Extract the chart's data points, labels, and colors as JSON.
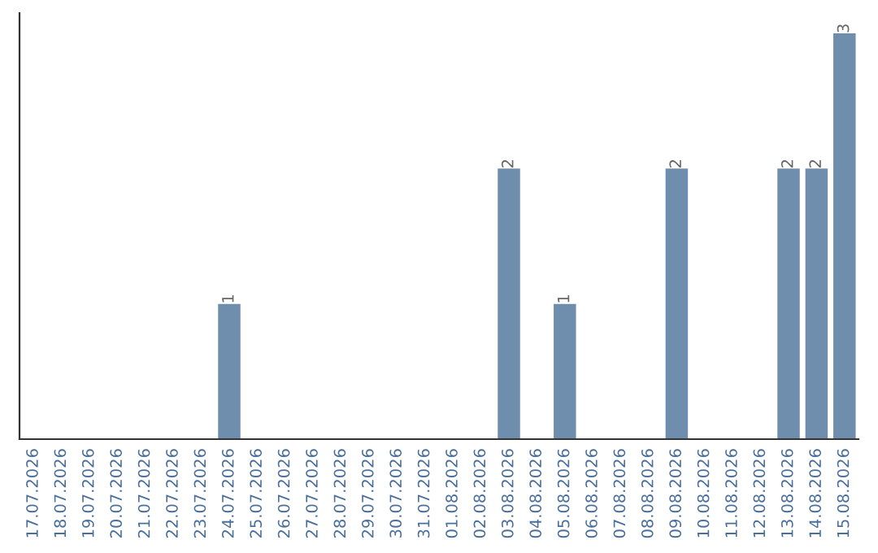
{
  "chart_data": {
    "type": "bar",
    "categories": [
      "17.07.2026",
      "18.07.2026",
      "19.07.2026",
      "20.07.2026",
      "21.07.2026",
      "22.07.2026",
      "23.07.2026",
      "24.07.2026",
      "25.07.2026",
      "26.07.2026",
      "27.07.2026",
      "28.07.2026",
      "29.07.2026",
      "30.07.2026",
      "31.07.2026",
      "01.08.2026",
      "02.08.2026",
      "03.08.2026",
      "04.08.2026",
      "05.08.2026",
      "06.08.2026",
      "07.08.2026",
      "08.08.2026",
      "09.08.2026",
      "10.08.2026",
      "11.08.2026",
      "12.08.2026",
      "13.08.2026",
      "14.08.2026",
      "15.08.2026"
    ],
    "values": [
      0,
      0,
      0,
      0,
      0,
      0,
      0,
      1,
      0,
      0,
      0,
      0,
      0,
      0,
      0,
      0,
      0,
      2,
      0,
      1,
      0,
      0,
      0,
      2,
      0,
      0,
      0,
      2,
      2,
      3
    ],
    "value_labels": [
      null,
      null,
      null,
      null,
      null,
      null,
      null,
      "1",
      null,
      null,
      null,
      null,
      null,
      null,
      null,
      null,
      null,
      "2",
      null,
      "1",
      null,
      null,
      null,
      "2",
      null,
      null,
      null,
      "2",
      "2",
      "3"
    ],
    "color": "#6f8eae",
    "tick_labels": "x",
    "grid": false,
    "legend": false
  }
}
